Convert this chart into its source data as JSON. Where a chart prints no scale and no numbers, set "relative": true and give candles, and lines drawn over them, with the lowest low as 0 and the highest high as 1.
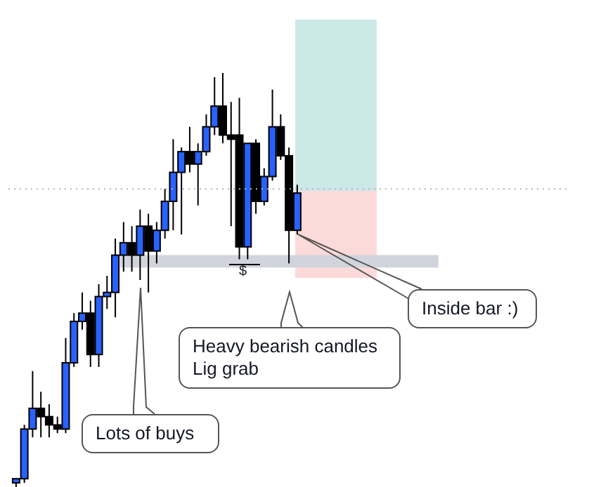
{
  "chart_data": {
    "type": "candlestick",
    "relative": true,
    "categories": [
      null,
      null,
      null,
      null,
      null,
      null,
      null,
      null,
      null,
      null,
      null,
      null,
      null,
      null,
      null,
      null,
      null,
      null,
      null,
      null,
      null,
      null,
      null,
      null,
      null,
      null,
      null,
      null,
      null,
      null,
      null,
      null,
      null,
      null,
      null
    ],
    "ohlc": [
      [
        0.01,
        0.02,
        0,
        0.02
      ],
      [
        0.02,
        0.15,
        0.01,
        0.14
      ],
      [
        0.14,
        0.28,
        0.12,
        0.19
      ],
      [
        0.19,
        0.23,
        0.12,
        0.17
      ],
      [
        0.17,
        0.2,
        0.12,
        0.15
      ],
      [
        0.15,
        0.17,
        0.13,
        0.14
      ],
      [
        0.14,
        0.36,
        0.13,
        0.3
      ],
      [
        0.3,
        0.42,
        0.29,
        0.4
      ],
      [
        0.4,
        0.47,
        0.38,
        0.42
      ],
      [
        0.42,
        0.45,
        0.29,
        0.32
      ],
      [
        0.32,
        0.49,
        0.29,
        0.46
      ],
      [
        0.46,
        0.51,
        0.43,
        0.47
      ],
      [
        0.47,
        0.6,
        0.41,
        0.56
      ],
      [
        0.56,
        0.64,
        0.52,
        0.59
      ],
      [
        0.59,
        0.63,
        0.52,
        0.56
      ],
      [
        0.56,
        0.67,
        0.5,
        0.63
      ],
      [
        0.63,
        0.66,
        0.47,
        0.57
      ],
      [
        0.57,
        0.64,
        0.54,
        0.62
      ],
      [
        0.62,
        0.72,
        0.6,
        0.69
      ],
      [
        0.69,
        0.84,
        0.62,
        0.76
      ],
      [
        0.76,
        0.82,
        0.61,
        0.81
      ],
      [
        0.81,
        0.87,
        0.76,
        0.78
      ],
      [
        0.78,
        0.83,
        0.68,
        0.81
      ],
      [
        0.81,
        0.9,
        0.8,
        0.87
      ],
      [
        0.87,
        0.99,
        0.85,
        0.92
      ],
      [
        0.92,
        1,
        0.83,
        0.85
      ],
      [
        0.85,
        0.93,
        0.63,
        0.84
      ],
      [
        0.85,
        0.94,
        0.55,
        0.58
      ],
      [
        0.58,
        0.83,
        0.55,
        0.83
      ],
      [
        0.83,
        0.84,
        0.66,
        0.69
      ],
      [
        0.69,
        0.77,
        0.68,
        0.75
      ],
      [
        0.75,
        0.96,
        0.74,
        0.87
      ],
      [
        0.87,
        0.9,
        0.79,
        0.8
      ],
      [
        0.8,
        0.82,
        0.54,
        0.62
      ],
      [
        0.62,
        0.73,
        0.61,
        0.71
      ]
    ],
    "colors": [
      "#2962ff",
      "#2962ff",
      "#2962ff",
      "#000000",
      "#000000",
      "#000000",
      "#2962ff",
      "#2962ff",
      "#2962ff",
      "#000000",
      "#2962ff",
      "#2962ff",
      "#2962ff",
      "#2962ff",
      "#000000",
      "#2962ff",
      "#000000",
      "#2962ff",
      "#2962ff",
      "#2962ff",
      "#2962ff",
      "#000000",
      "#2962ff",
      "#2962ff",
      "#2962ff",
      "#000000",
      "#000000",
      "#000000",
      "#2962ff",
      "#000000",
      "#2962ff",
      "#2962ff",
      "#000000",
      "#000000",
      "#2962ff"
    ],
    "bands": [
      {
        "axis": "y",
        "from": 0.53,
        "to": 0.56,
        "color": "#d1d4dc"
      }
    ],
    "ref_lines": [
      {
        "axis": "y",
        "value": 0.72,
        "color": "#b2b5be",
        "line_style": "dotted"
      }
    ],
    "annotations": [
      "Lots of buys",
      "Heavy bearish candles\nLig grab",
      "Inside bar :)",
      "$"
    ]
  }
}
